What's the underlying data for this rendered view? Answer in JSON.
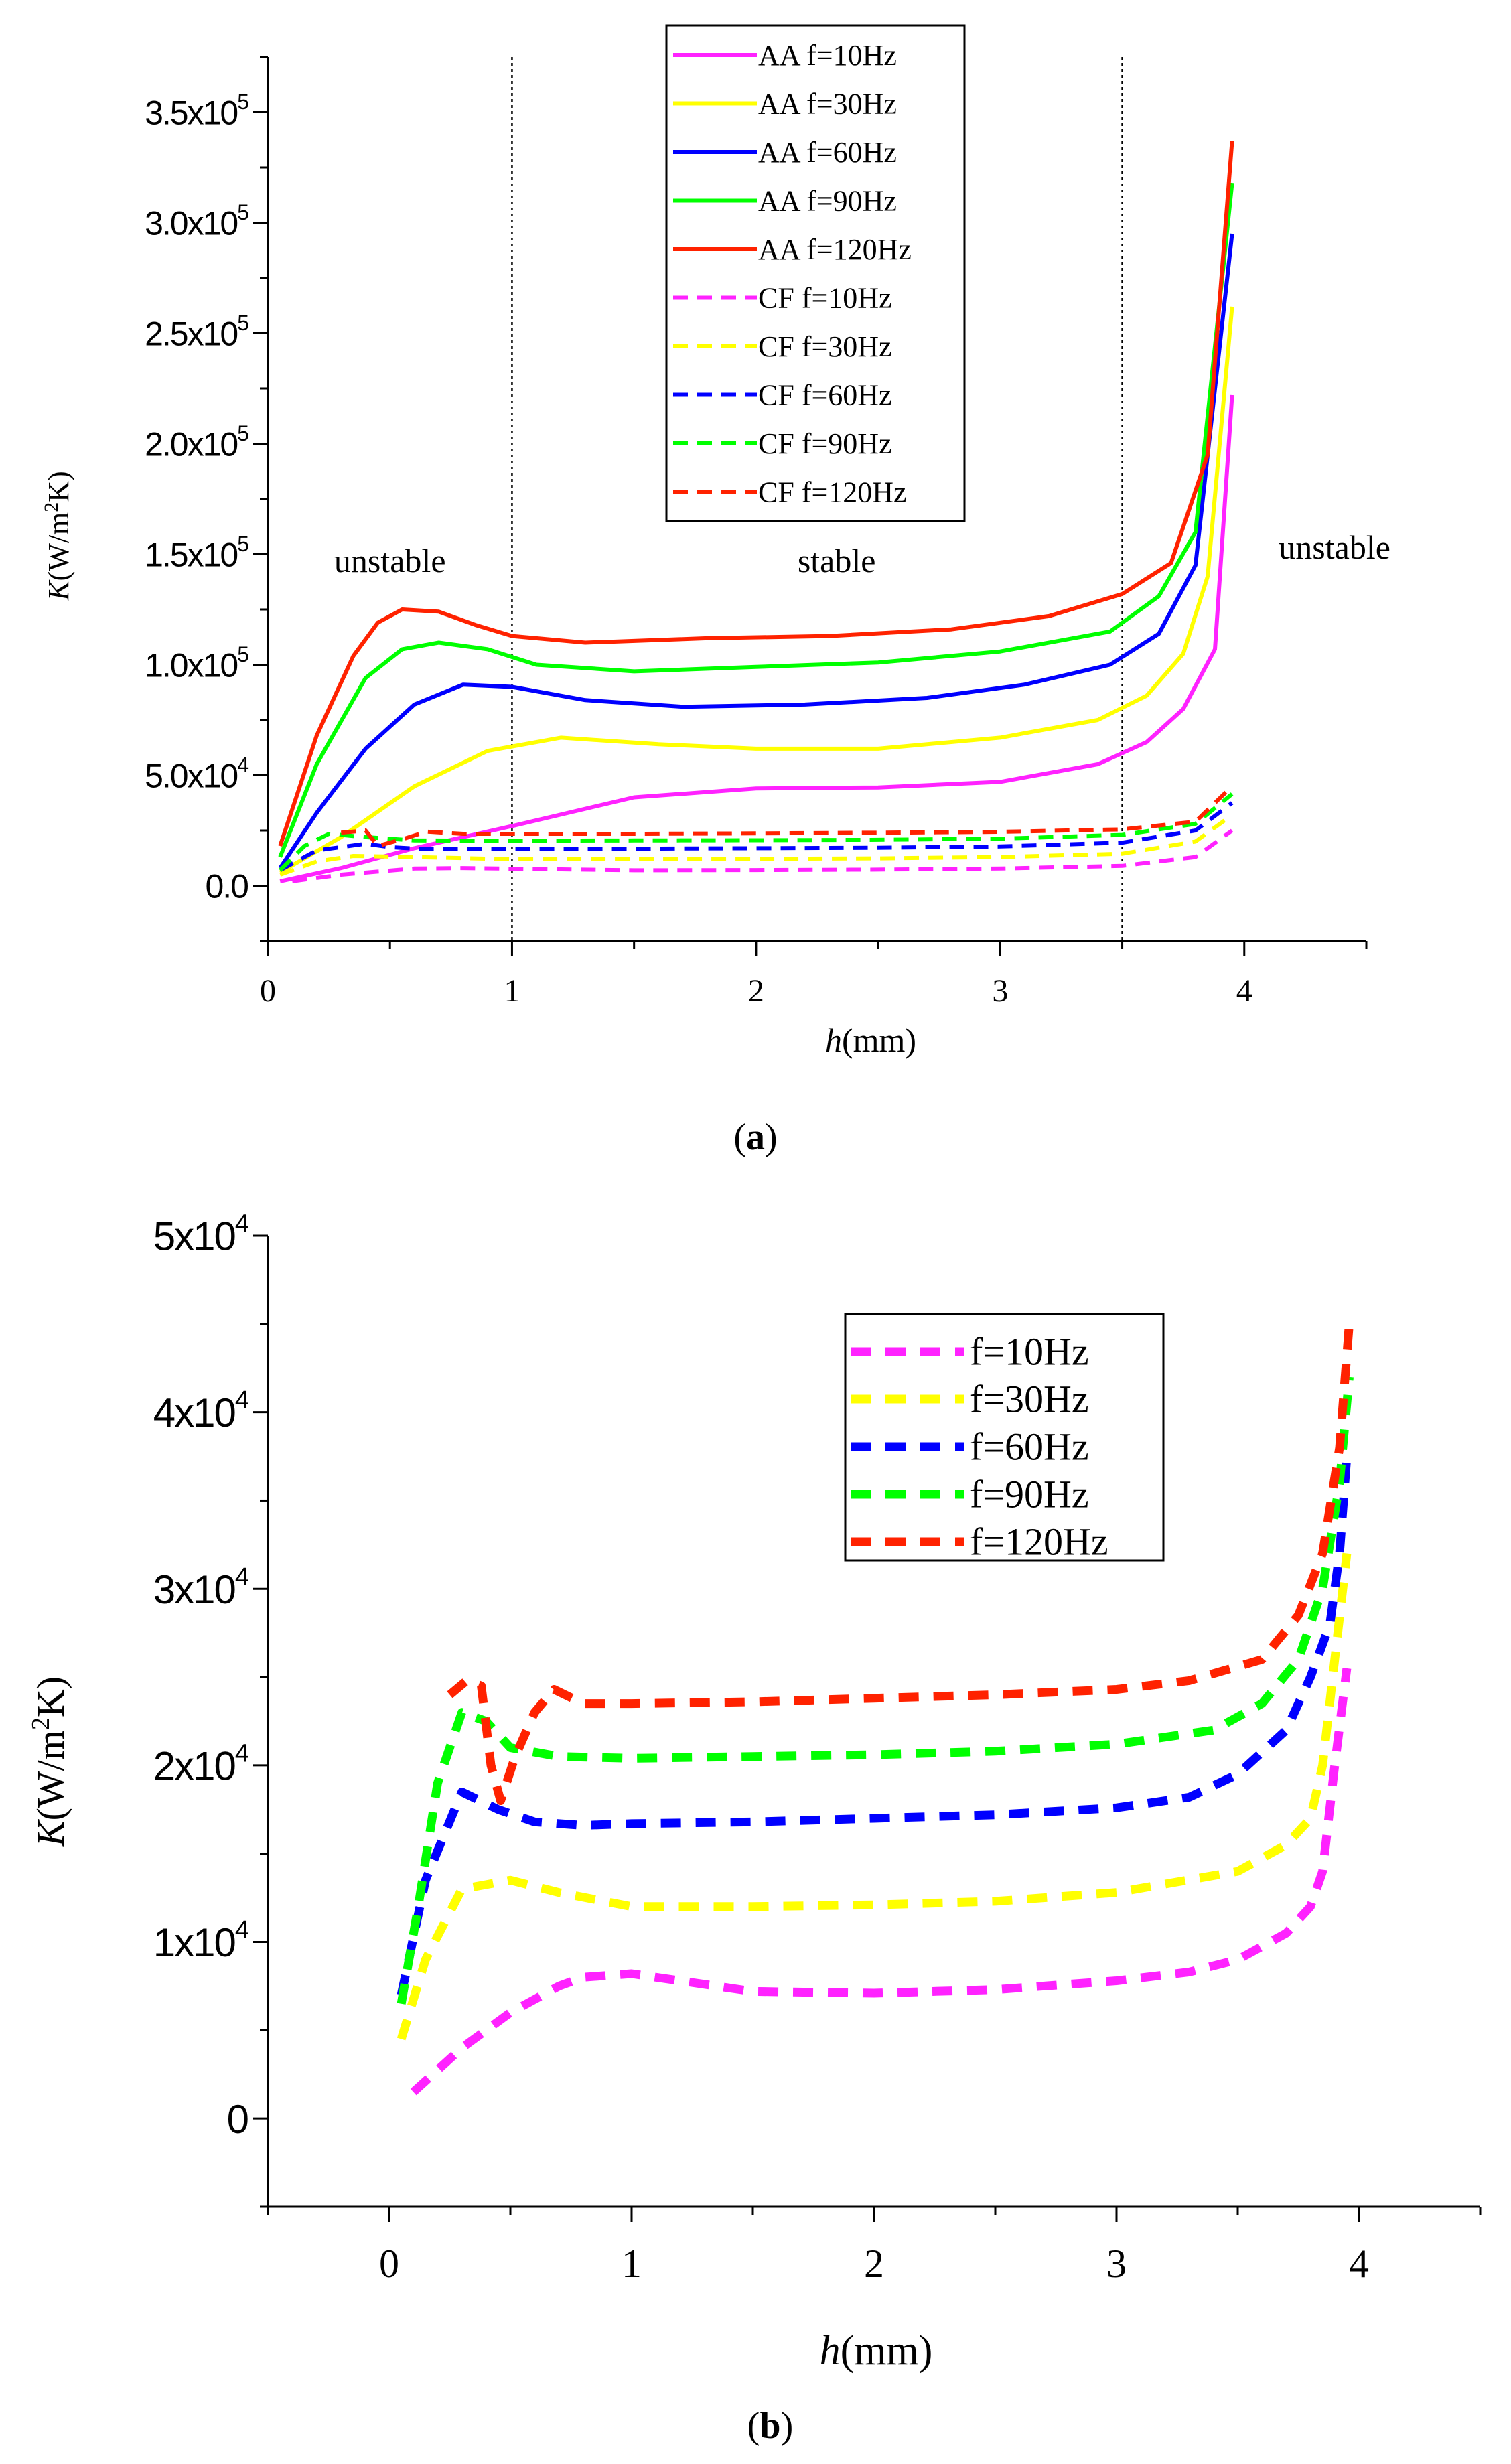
{
  "figure": {
    "panel_a_caption": "a",
    "panel_b_caption": "b"
  },
  "chart_data": [
    {
      "type": "line",
      "panel": "a",
      "xlabel_italic": "h",
      "xlabel_rest": "(mm)",
      "ylabel_italic": "K",
      "ylabel_parts": [
        "(W/m",
        "2",
        "K)"
      ],
      "xlim": [
        0,
        4.5
      ],
      "ylim": [
        -25000,
        375000
      ],
      "x_ticks": [
        0,
        1,
        2,
        3,
        4
      ],
      "x_tick_labels": [
        "0",
        "1",
        "2",
        "3",
        "4"
      ],
      "y_ticks": [
        0,
        50000,
        100000,
        150000,
        200000,
        250000,
        300000,
        350000
      ],
      "y_tick_labels": [
        {
          "mantissa": "0.0",
          "exp": ""
        },
        {
          "mantissa": "5.0x10",
          "exp": "4"
        },
        {
          "mantissa": "1.0x10",
          "exp": "5"
        },
        {
          "mantissa": "1.5x10",
          "exp": "5"
        },
        {
          "mantissa": "2.0x10",
          "exp": "5"
        },
        {
          "mantissa": "2.5x10",
          "exp": "5"
        },
        {
          "mantissa": "3.0x10",
          "exp": "5"
        },
        {
          "mantissa": "3.5x10",
          "exp": "5"
        }
      ],
      "vertical_lines": [
        1,
        3.5
      ],
      "annotations": [
        {
          "text": "unstable",
          "x": 0.5,
          "y": 142000
        },
        {
          "text": "stable",
          "x": 2.33,
          "y": 142000
        },
        {
          "text": "unstable",
          "x": 4.37,
          "y": 148000
        }
      ],
      "legend_position": "top-center",
      "series": [
        {
          "name": "AA f=10Hz",
          "color": "#ff22ff",
          "dash": false,
          "x": [
            0.05,
            0.3,
            0.6,
            1.0,
            1.5,
            2.0,
            2.5,
            3.0,
            3.4,
            3.6,
            3.75,
            3.88,
            3.95
          ],
          "y": [
            2000,
            8000,
            17000,
            27000,
            40000,
            44000,
            44500,
            47000,
            55000,
            65000,
            80000,
            107000,
            222000
          ]
        },
        {
          "name": "AA f=30Hz",
          "color": "#ffff00",
          "dash": false,
          "x": [
            0.05,
            0.3,
            0.6,
            0.9,
            1.2,
            1.6,
            2.0,
            2.5,
            3.0,
            3.4,
            3.6,
            3.75,
            3.85,
            3.95
          ],
          "y": [
            6000,
            22000,
            45000,
            61000,
            67000,
            64000,
            62000,
            62000,
            67000,
            75000,
            86000,
            105000,
            140000,
            262000
          ]
        },
        {
          "name": "AA f=60Hz",
          "color": "#0000ff",
          "dash": false,
          "x": [
            0.05,
            0.2,
            0.4,
            0.6,
            0.8,
            1.0,
            1.3,
            1.7,
            2.2,
            2.7,
            3.1,
            3.45,
            3.65,
            3.8,
            3.95
          ],
          "y": [
            8000,
            33000,
            62000,
            82000,
            91000,
            90000,
            84000,
            81000,
            82000,
            85000,
            91000,
            100000,
            114000,
            145000,
            295000
          ]
        },
        {
          "name": "AA f=90Hz",
          "color": "#00ff00",
          "dash": false,
          "x": [
            0.05,
            0.2,
            0.4,
            0.55,
            0.7,
            0.9,
            1.1,
            1.5,
            2.0,
            2.5,
            3.0,
            3.45,
            3.65,
            3.8,
            3.95
          ],
          "y": [
            13000,
            55000,
            94000,
            107000,
            110000,
            107000,
            100000,
            97000,
            99000,
            101000,
            106000,
            115000,
            131000,
            160000,
            318000
          ]
        },
        {
          "name": "AA f=120Hz",
          "color": "#ff2200",
          "dash": false,
          "x": [
            0.05,
            0.2,
            0.35,
            0.45,
            0.55,
            0.7,
            0.85,
            1.0,
            1.3,
            1.8,
            2.3,
            2.8,
            3.2,
            3.5,
            3.7,
            3.85,
            3.95
          ],
          "y": [
            18000,
            68000,
            104000,
            119000,
            125000,
            124000,
            118000,
            113000,
            110000,
            112000,
            113000,
            116000,
            122000,
            132000,
            146000,
            195000,
            337000
          ]
        },
        {
          "name": "CF f=10Hz",
          "color": "#ff22ff",
          "dash": true,
          "x": [
            0.1,
            0.3,
            0.6,
            0.8,
            1.5,
            2.0,
            2.5,
            3.0,
            3.5,
            3.8,
            3.95
          ],
          "y": [
            2000,
            5000,
            7800,
            8000,
            7000,
            7100,
            7300,
            7800,
            9000,
            13000,
            25000
          ]
        },
        {
          "name": "CF f=30Hz",
          "color": "#ffff00",
          "dash": true,
          "x": [
            0.05,
            0.2,
            0.35,
            0.6,
            1.0,
            1.5,
            2.0,
            2.5,
            3.0,
            3.5,
            3.8,
            3.95
          ],
          "y": [
            5000,
            11000,
            13500,
            13000,
            12000,
            12000,
            12200,
            12400,
            13000,
            14500,
            20000,
            32000
          ]
        },
        {
          "name": "CF f=60Hz",
          "color": "#0000ff",
          "dash": true,
          "x": [
            0.05,
            0.2,
            0.4,
            0.5,
            0.65,
            1.0,
            1.5,
            2.0,
            2.5,
            3.0,
            3.5,
            3.8,
            3.95
          ],
          "y": [
            7000,
            16000,
            19000,
            17500,
            16500,
            16700,
            16800,
            17000,
            17200,
            17800,
            19500,
            25000,
            37500
          ]
        },
        {
          "name": "CF f=90Hz",
          "color": "#00ff00",
          "dash": true,
          "x": [
            0.05,
            0.15,
            0.25,
            0.4,
            0.6,
            1.0,
            1.5,
            2.0,
            2.5,
            3.0,
            3.5,
            3.8,
            3.95
          ],
          "y": [
            7000,
            18000,
            23500,
            22000,
            20500,
            20400,
            20500,
            20600,
            20800,
            21300,
            23000,
            28000,
            41500
          ]
        },
        {
          "name": "CF f=120Hz",
          "color": "#ff2200",
          "dash": true,
          "x": [
            0.3,
            0.4,
            0.45,
            0.55,
            0.65,
            0.8,
            1.5,
            2.0,
            2.5,
            3.0,
            3.5,
            3.8,
            3.95
          ],
          "y": [
            24000,
            25000,
            18000,
            21000,
            24500,
            23500,
            23500,
            23700,
            24000,
            24400,
            25500,
            29000,
            45000
          ]
        }
      ]
    },
    {
      "type": "line",
      "panel": "b",
      "xlabel_italic": "h",
      "xlabel_rest": "(mm)",
      "ylabel_italic": "K",
      "ylabel_parts": [
        "(W/m",
        "2",
        "K)"
      ],
      "xlim": [
        -0.5,
        4.5
      ],
      "ylim": [
        -5000,
        50000
      ],
      "x_ticks": [
        0,
        1,
        2,
        3,
        4
      ],
      "x_tick_labels": [
        "0",
        "1",
        "2",
        "3",
        "4"
      ],
      "y_ticks": [
        0,
        10000,
        20000,
        30000,
        40000,
        50000
      ],
      "y_tick_labels": [
        {
          "mantissa": "0",
          "exp": ""
        },
        {
          "mantissa": "1x10",
          "exp": "4"
        },
        {
          "mantissa": "2x10",
          "exp": "4"
        },
        {
          "mantissa": "3x10",
          "exp": "4"
        },
        {
          "mantissa": "4x10",
          "exp": "4"
        },
        {
          "mantissa": "5x10",
          "exp": "4"
        }
      ],
      "legend_position": "top-right",
      "series": [
        {
          "name": "f=10Hz",
          "color": "#ff22ff",
          "dash": true,
          "x": [
            0.1,
            0.3,
            0.5,
            0.7,
            0.8,
            1.0,
            1.2,
            1.5,
            2.0,
            2.5,
            3.0,
            3.3,
            3.5,
            3.7,
            3.8,
            3.85,
            3.9,
            3.95
          ],
          "y": [
            1500,
            4000,
            6000,
            7500,
            8000,
            8200,
            7800,
            7200,
            7100,
            7300,
            7800,
            8300,
            9000,
            10500,
            12000,
            14000,
            20000,
            25500
          ]
        },
        {
          "name": "f=30Hz",
          "color": "#ffff00",
          "dash": true,
          "x": [
            0.05,
            0.15,
            0.3,
            0.5,
            0.7,
            1.0,
            1.5,
            2.0,
            2.5,
            3.0,
            3.5,
            3.7,
            3.8,
            3.85,
            3.9,
            3.95
          ],
          "y": [
            4500,
            9000,
            13000,
            13500,
            12800,
            12000,
            12000,
            12100,
            12300,
            12800,
            14000,
            15500,
            17000,
            20000,
            26000,
            32000
          ]
        },
        {
          "name": "f=60Hz",
          "color": "#0000ff",
          "dash": true,
          "x": [
            0.05,
            0.15,
            0.3,
            0.45,
            0.6,
            0.8,
            1.0,
            1.5,
            2.0,
            2.5,
            3.0,
            3.3,
            3.5,
            3.7,
            3.8,
            3.88,
            3.92,
            3.95
          ],
          "y": [
            7000,
            13500,
            18500,
            17500,
            16800,
            16600,
            16700,
            16800,
            17000,
            17200,
            17600,
            18200,
            19500,
            22000,
            25000,
            28000,
            32000,
            37500
          ]
        },
        {
          "name": "f=90Hz",
          "color": "#00ff00",
          "dash": true,
          "x": [
            0.05,
            0.12,
            0.2,
            0.3,
            0.4,
            0.5,
            0.7,
            1.0,
            1.5,
            2.0,
            2.5,
            3.0,
            3.4,
            3.6,
            3.75,
            3.85,
            3.92,
            3.96
          ],
          "y": [
            6500,
            12000,
            19000,
            23000,
            22500,
            21000,
            20500,
            20400,
            20500,
            20600,
            20800,
            21200,
            22000,
            23500,
            26000,
            30000,
            36000,
            42000
          ]
        },
        {
          "name": "f=120Hz",
          "color": "#ff2200",
          "dash": true,
          "x": [
            0.25,
            0.32,
            0.38,
            0.42,
            0.46,
            0.52,
            0.6,
            0.68,
            0.8,
            1.0,
            1.5,
            2.0,
            2.5,
            3.0,
            3.3,
            3.6,
            3.75,
            3.85,
            3.92,
            3.96
          ],
          "y": [
            24000,
            24800,
            24500,
            20000,
            18000,
            20500,
            23000,
            24300,
            23500,
            23500,
            23600,
            23800,
            24000,
            24300,
            24800,
            26000,
            28500,
            32000,
            38000,
            45000
          ]
        }
      ]
    }
  ]
}
